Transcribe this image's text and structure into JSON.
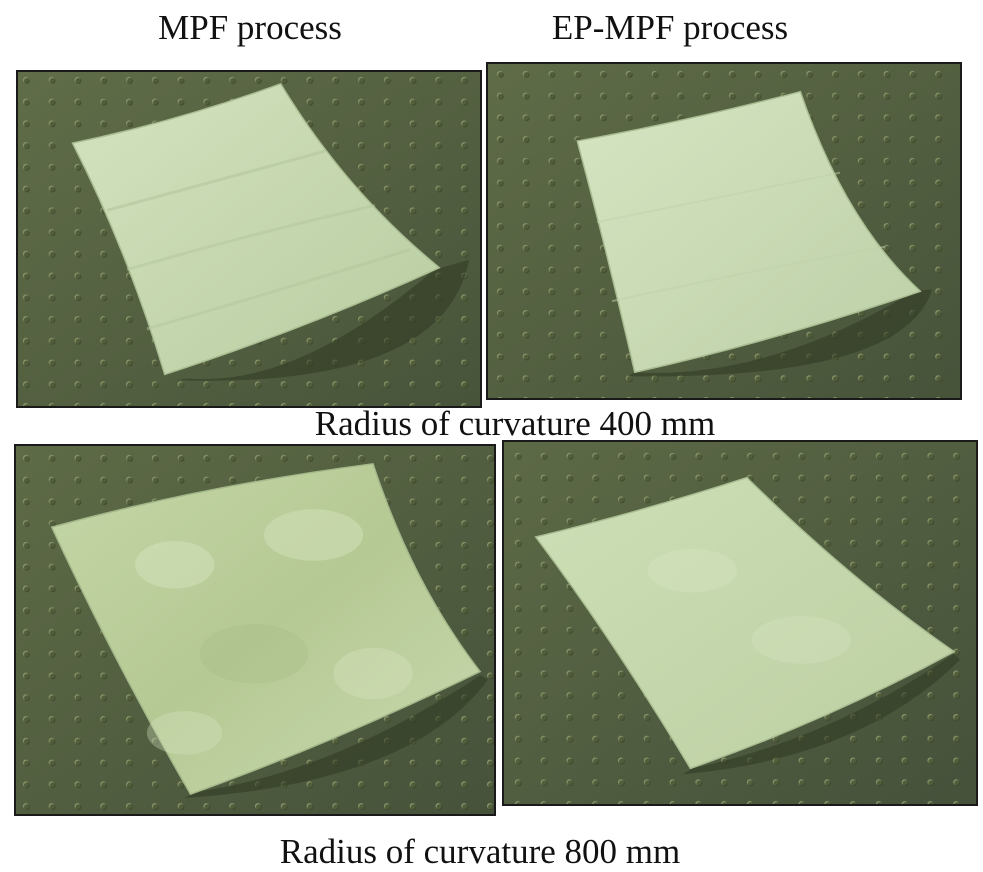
{
  "columns": {
    "left_heading": "MPF process",
    "right_heading": "EP-MPF process"
  },
  "rows": {
    "top_caption": "Radius of curvature 400 mm",
    "bottom_caption": "Radius of curvature 800 mm"
  },
  "photos": [
    {
      "name": "photo-mpf-400",
      "subject": "curved metal sheet on optical breadboard"
    },
    {
      "name": "photo-ep-mpf-400",
      "subject": "curved metal sheet on optical breadboard"
    },
    {
      "name": "photo-mpf-800",
      "subject": "curved metal sheet on optical breadboard"
    },
    {
      "name": "photo-ep-mpf-800",
      "subject": "curved metal sheet on optical breadboard"
    }
  ],
  "colors": {
    "table": "#55623f",
    "table_shadow": "#3a4428",
    "hole": "#8a966a",
    "sheet": "#c9dab2",
    "sheet_edge": "#a9bd92"
  }
}
